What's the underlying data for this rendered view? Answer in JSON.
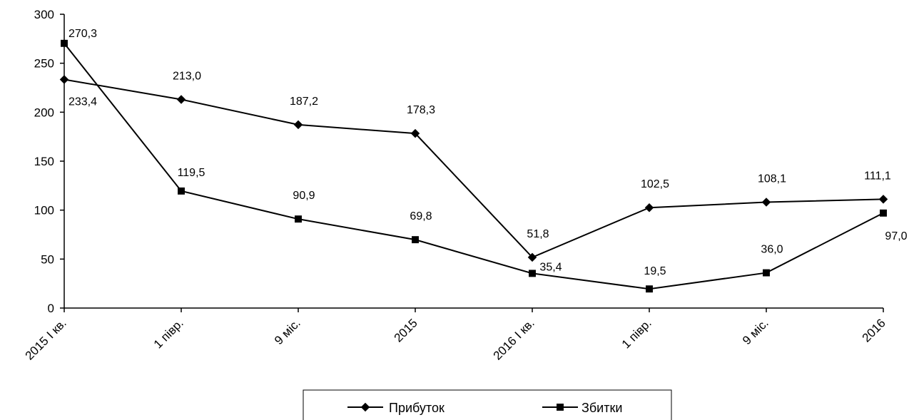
{
  "chart_data": {
    "type": "line",
    "categories": [
      "2015 I кв.",
      "1 півр.",
      "9 міс.",
      "2015",
      "2016  I кв.",
      "1 півр.",
      "9 міс.",
      "2016"
    ],
    "series": [
      {
        "name": "Прибуток",
        "marker": "diamond",
        "values": [
          233.4,
          213.0,
          187.2,
          178.3,
          51.8,
          102.5,
          108.1,
          111.1
        ],
        "labels": [
          "233,4",
          "213,0",
          "187,2",
          "178,3",
          "51,8",
          "102,5",
          "108,1",
          "111,1"
        ]
      },
      {
        "name": "Збитки",
        "marker": "square",
        "values": [
          270.3,
          119.5,
          90.9,
          69.8,
          35.4,
          19.5,
          36.0,
          97.0
        ],
        "labels": [
          "270,3",
          "119,5",
          "90,9",
          "69,8",
          "35,4",
          "19,5",
          "36,0",
          "97,0"
        ]
      }
    ],
    "ylim": [
      0,
      300
    ],
    "yticks": [
      0,
      50,
      100,
      150,
      200,
      250,
      300
    ],
    "grid": false,
    "legend_position": "bottom",
    "line_color": "#000000"
  }
}
